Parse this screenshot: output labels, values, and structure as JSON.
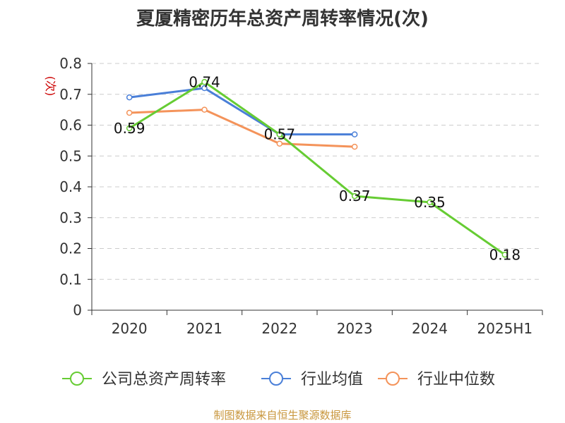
{
  "chart_data": {
    "type": "line",
    "title": "夏厦精密历年总资产周转率情况(次)",
    "ylabel": "(次)",
    "categories": [
      "2020",
      "2021",
      "2022",
      "2023",
      "2024",
      "2025H1"
    ],
    "ylim": [
      0,
      0.8
    ],
    "yticks": [
      "0",
      "0.1",
      "0.2",
      "0.3",
      "0.4",
      "0.5",
      "0.6",
      "0.7",
      "0.8"
    ],
    "grid": true,
    "legend_position": "bottom",
    "series": [
      {
        "name": "公司总资产周转率",
        "color": "#66cc33",
        "values": [
          0.59,
          0.74,
          0.57,
          0.37,
          0.35,
          0.18
        ],
        "labels": [
          "0.59",
          "0.74",
          "0.57",
          "0.37",
          "0.35",
          "0.18"
        ]
      },
      {
        "name": "行业均值",
        "color": "#4a7fd8",
        "values": [
          0.69,
          0.72,
          0.57,
          0.57,
          null,
          null
        ]
      },
      {
        "name": "行业中位数",
        "color": "#f4935a",
        "values": [
          0.64,
          0.65,
          0.54,
          0.53,
          null,
          null
        ]
      }
    ]
  },
  "source": "制图数据来自恒生聚源数据库"
}
